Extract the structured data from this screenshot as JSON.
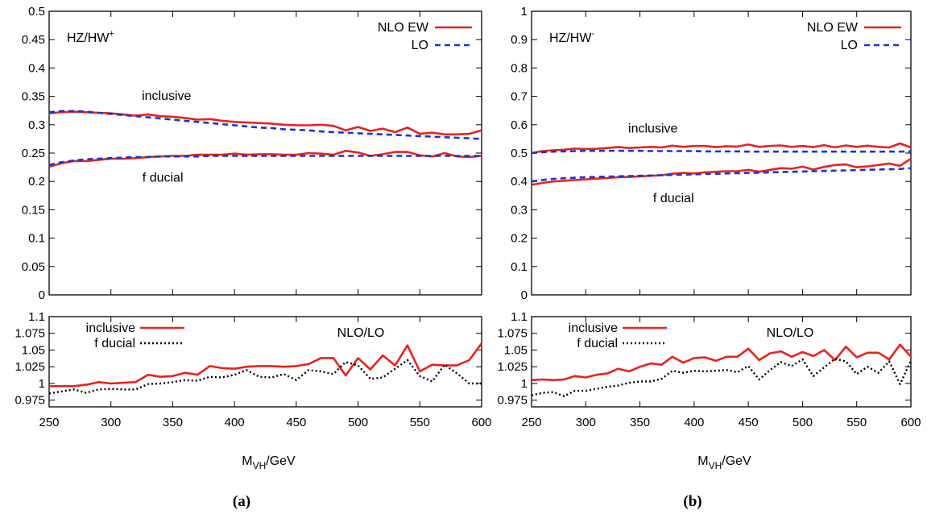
{
  "figure": {
    "captions": [
      "(a)",
      "(b)"
    ],
    "xlabel_main": "M",
    "xlabel_sub": "VH",
    "xlabel_unit": "/GeV"
  },
  "chart_data": [
    {
      "type": "line",
      "panel": "(a)",
      "title_main": "HZ/HW",
      "title_sup": "+",
      "xlim": [
        250,
        600
      ],
      "x_ticks": [
        "250",
        "300",
        "350",
        "400",
        "450",
        "500",
        "550",
        "600"
      ],
      "top": {
        "ylim": [
          0,
          0.5
        ],
        "y_ticks": [
          "0",
          "0.05",
          "0.1",
          "0.15",
          "0.2",
          "0.25",
          "0.3",
          "0.35",
          "0.4",
          "0.45",
          "0.5"
        ],
        "legend": [
          "NLO EW",
          "LO"
        ],
        "annotations": [
          "inclusive",
          "f ducial"
        ],
        "x": [
          250,
          260,
          270,
          280,
          290,
          300,
          310,
          320,
          330,
          340,
          350,
          360,
          370,
          380,
          390,
          400,
          410,
          420,
          430,
          440,
          450,
          460,
          470,
          480,
          490,
          500,
          510,
          520,
          530,
          540,
          550,
          560,
          570,
          580,
          590,
          600
        ],
        "series": [
          {
            "name": "NLO EW",
            "group": "inclusive",
            "color": "#e8231d",
            "values": [
              0.32,
              0.322,
              0.323,
              0.322,
              0.321,
              0.32,
              0.318,
              0.316,
              0.318,
              0.315,
              0.314,
              0.312,
              0.309,
              0.31,
              0.307,
              0.305,
              0.304,
              0.303,
              0.302,
              0.3,
              0.299,
              0.299,
              0.3,
              0.298,
              0.29,
              0.296,
              0.289,
              0.293,
              0.287,
              0.295,
              0.284,
              0.286,
              0.283,
              0.283,
              0.284,
              0.29
            ]
          },
          {
            "name": "LO",
            "group": "inclusive",
            "color": "#1a33d6",
            "values": [
              0.322,
              0.324,
              0.324,
              0.323,
              0.321,
              0.319,
              0.317,
              0.315,
              0.313,
              0.311,
              0.309,
              0.307,
              0.305,
              0.303,
              0.301,
              0.299,
              0.297,
              0.295,
              0.294,
              0.292,
              0.291,
              0.29,
              0.288,
              0.287,
              0.286,
              0.285,
              0.284,
              0.283,
              0.282,
              0.281,
              0.28,
              0.279,
              0.278,
              0.277,
              0.276,
              0.275
            ]
          },
          {
            "name": "NLO EW",
            "group": "f ducial",
            "color": "#e8231d",
            "values": [
              0.226,
              0.232,
              0.236,
              0.236,
              0.238,
              0.24,
              0.24,
              0.241,
              0.243,
              0.244,
              0.245,
              0.245,
              0.247,
              0.247,
              0.247,
              0.249,
              0.247,
              0.248,
              0.248,
              0.247,
              0.247,
              0.25,
              0.249,
              0.247,
              0.254,
              0.251,
              0.245,
              0.248,
              0.252,
              0.252,
              0.246,
              0.244,
              0.25,
              0.244,
              0.243,
              0.245
            ]
          },
          {
            "name": "LO",
            "group": "f ducial",
            "color": "#1a33d6",
            "values": [
              0.229,
              0.234,
              0.237,
              0.239,
              0.24,
              0.241,
              0.242,
              0.243,
              0.243,
              0.244,
              0.244,
              0.244,
              0.244,
              0.245,
              0.245,
              0.245,
              0.245,
              0.245,
              0.245,
              0.245,
              0.245,
              0.245,
              0.245,
              0.245,
              0.245,
              0.245,
              0.245,
              0.245,
              0.245,
              0.245,
              0.245,
              0.245,
              0.245,
              0.245,
              0.245,
              0.245
            ]
          }
        ]
      },
      "ratio": {
        "ylim": [
          0.965,
          1.1
        ],
        "y_ticks": [
          "0.975",
          "1",
          "1.025",
          "1.05",
          "1.075",
          "1.1"
        ],
        "legend": [
          "inclusive",
          "f ducial"
        ],
        "label": "NLO/LO",
        "x": [
          250,
          260,
          270,
          280,
          290,
          300,
          310,
          320,
          330,
          340,
          350,
          360,
          370,
          380,
          390,
          400,
          410,
          420,
          430,
          440,
          450,
          460,
          470,
          480,
          490,
          500,
          510,
          520,
          530,
          540,
          550,
          560,
          570,
          580,
          590,
          600
        ],
        "series": [
          {
            "name": "inclusive",
            "color": "#e8231d",
            "dash": "solid",
            "values": [
              0.996,
              0.996,
              0.996,
              0.998,
              1.002,
              1.0,
              1.001,
              1.002,
              1.013,
              1.01,
              1.011,
              1.016,
              1.013,
              1.026,
              1.023,
              1.022,
              1.025,
              1.026,
              1.026,
              1.025,
              1.026,
              1.029,
              1.038,
              1.038,
              1.012,
              1.038,
              1.021,
              1.042,
              1.027,
              1.057,
              1.018,
              1.028,
              1.027,
              1.027,
              1.035,
              1.06
            ]
          },
          {
            "name": "f ducial",
            "color": "#000000",
            "dash": "dotted",
            "values": [
              0.985,
              0.988,
              0.991,
              0.986,
              0.991,
              0.992,
              0.991,
              0.991,
              0.999,
              1.0,
              1.002,
              1.005,
              1.004,
              1.01,
              1.009,
              1.013,
              1.02,
              1.01,
              1.009,
              1.014,
              1.005,
              1.02,
              1.018,
              1.014,
              1.032,
              1.027,
              1.007,
              1.009,
              1.022,
              1.035,
              1.011,
              1.003,
              1.028,
              1.015,
              1.0,
              1.0
            ]
          }
        ]
      }
    },
    {
      "type": "line",
      "panel": "(b)",
      "title_main": "HZ/HW",
      "title_sup": "-",
      "xlim": [
        250,
        600
      ],
      "x_ticks": [
        "250",
        "300",
        "350",
        "400",
        "450",
        "500",
        "550",
        "600"
      ],
      "top": {
        "ylim": [
          0,
          1
        ],
        "y_ticks": [
          "0",
          "0.1",
          "0.2",
          "0.3",
          "0.4",
          "0.5",
          "0.6",
          "0.7",
          "0.8",
          "0.9",
          "1"
        ],
        "legend": [
          "NLO EW",
          "LO"
        ],
        "annotations": [
          "inclusive",
          "f ducial"
        ],
        "x": [
          250,
          260,
          270,
          280,
          290,
          300,
          310,
          320,
          330,
          340,
          350,
          360,
          370,
          380,
          390,
          400,
          410,
          420,
          430,
          440,
          450,
          460,
          470,
          480,
          490,
          500,
          510,
          520,
          530,
          540,
          550,
          560,
          570,
          580,
          590,
          600
        ],
        "series": [
          {
            "name": "NLO EW",
            "group": "inclusive",
            "color": "#e8231d",
            "values": [
              0.5,
              0.507,
              0.51,
              0.512,
              0.516,
              0.514,
              0.515,
              0.518,
              0.521,
              0.518,
              0.52,
              0.522,
              0.52,
              0.526,
              0.522,
              0.525,
              0.525,
              0.521,
              0.524,
              0.523,
              0.53,
              0.522,
              0.525,
              0.527,
              0.522,
              0.525,
              0.521,
              0.528,
              0.52,
              0.527,
              0.522,
              0.526,
              0.522,
              0.52,
              0.534,
              0.52
            ]
          },
          {
            "name": "LO",
            "group": "inclusive",
            "color": "#1a33d6",
            "values": [
              0.5,
              0.503,
              0.505,
              0.506,
              0.507,
              0.508,
              0.508,
              0.508,
              0.508,
              0.508,
              0.508,
              0.507,
              0.507,
              0.507,
              0.507,
              0.507,
              0.506,
              0.506,
              0.506,
              0.506,
              0.505,
              0.505,
              0.505,
              0.505,
              0.505,
              0.505,
              0.505,
              0.505,
              0.505,
              0.505,
              0.505,
              0.505,
              0.505,
              0.505,
              0.505,
              0.506
            ]
          },
          {
            "name": "NLO EW",
            "group": "f ducial",
            "color": "#e8231d",
            "values": [
              0.388,
              0.395,
              0.4,
              0.402,
              0.405,
              0.407,
              0.41,
              0.412,
              0.415,
              0.416,
              0.418,
              0.42,
              0.422,
              0.427,
              0.43,
              0.428,
              0.432,
              0.434,
              0.436,
              0.436,
              0.441,
              0.434,
              0.441,
              0.447,
              0.445,
              0.452,
              0.442,
              0.451,
              0.458,
              0.46,
              0.45,
              0.453,
              0.458,
              0.463,
              0.455,
              0.48
            ]
          },
          {
            "name": "LO",
            "group": "f ducial",
            "color": "#1a33d6",
            "values": [
              0.4,
              0.405,
              0.409,
              0.411,
              0.413,
              0.415,
              0.416,
              0.417,
              0.418,
              0.419,
              0.42,
              0.421,
              0.422,
              0.423,
              0.424,
              0.425,
              0.426,
              0.427,
              0.428,
              0.429,
              0.43,
              0.431,
              0.432,
              0.433,
              0.434,
              0.435,
              0.436,
              0.437,
              0.438,
              0.439,
              0.44,
              0.441,
              0.442,
              0.443,
              0.444,
              0.447
            ]
          }
        ]
      },
      "ratio": {
        "ylim": [
          0.965,
          1.1
        ],
        "y_ticks": [
          "0.975",
          "1",
          "1.025",
          "1.05",
          "1.075",
          "1.1"
        ],
        "legend": [
          "inclusive",
          "f ducial"
        ],
        "label": "NLO/LO",
        "x": [
          250,
          260,
          270,
          280,
          290,
          300,
          310,
          320,
          330,
          340,
          350,
          360,
          370,
          380,
          390,
          400,
          410,
          420,
          430,
          440,
          450,
          460,
          470,
          480,
          490,
          500,
          510,
          520,
          530,
          540,
          550,
          560,
          570,
          580,
          590,
          600
        ],
        "series": [
          {
            "name": "inclusive",
            "color": "#e8231d",
            "dash": "solid",
            "values": [
              1.005,
              1.006,
              1.005,
              1.006,
              1.011,
              1.009,
              1.013,
              1.015,
              1.022,
              1.018,
              1.025,
              1.03,
              1.028,
              1.04,
              1.031,
              1.038,
              1.039,
              1.034,
              1.04,
              1.04,
              1.052,
              1.035,
              1.045,
              1.048,
              1.04,
              1.047,
              1.041,
              1.05,
              1.035,
              1.055,
              1.039,
              1.046,
              1.046,
              1.036,
              1.058,
              1.04
            ]
          },
          {
            "name": "f ducial",
            "color": "#000000",
            "dash": "dotted",
            "values": [
              0.982,
              0.986,
              0.987,
              0.981,
              0.989,
              0.989,
              0.992,
              0.995,
              0.997,
              1.001,
              1.003,
              1.003,
              1.007,
              1.019,
              1.016,
              1.019,
              1.018,
              1.019,
              1.02,
              1.017,
              1.026,
              1.006,
              1.02,
              1.032,
              1.026,
              1.036,
              1.011,
              1.024,
              1.037,
              1.033,
              1.014,
              1.025,
              1.016,
              1.033,
              0.999,
              1.034
            ]
          }
        ]
      }
    }
  ]
}
